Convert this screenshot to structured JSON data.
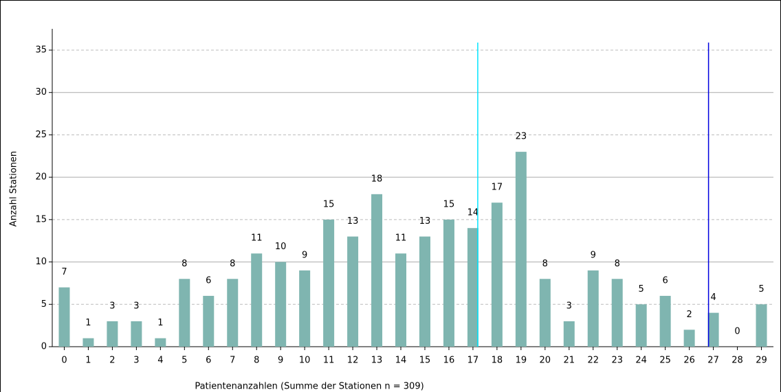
{
  "chart_data": {
    "type": "bar",
    "xlabel": "Patientenanzahlen (Summe der Stationen n = 309)",
    "ylabel": "Anzahl Stationen",
    "categories": [
      0,
      1,
      2,
      3,
      4,
      5,
      6,
      7,
      8,
      9,
      10,
      11,
      12,
      13,
      14,
      15,
      16,
      17,
      18,
      19,
      20,
      21,
      22,
      23,
      24,
      25,
      26,
      27,
      28,
      29
    ],
    "values": [
      7,
      1,
      3,
      3,
      1,
      8,
      6,
      8,
      11,
      10,
      9,
      15,
      13,
      18,
      11,
      13,
      15,
      14,
      17,
      23,
      8,
      3,
      9,
      8,
      5,
      6,
      2,
      4,
      0,
      5
    ],
    "color": "#7fb5b0",
    "ylim": [
      0,
      35
    ],
    "yticks": [
      0,
      5,
      10,
      15,
      20,
      25,
      30,
      35
    ],
    "grid": true,
    "vlines": [
      {
        "x": 17.2,
        "color": "#00e5ff"
      },
      {
        "x": 26.8,
        "color": "#0000e0"
      }
    ]
  }
}
